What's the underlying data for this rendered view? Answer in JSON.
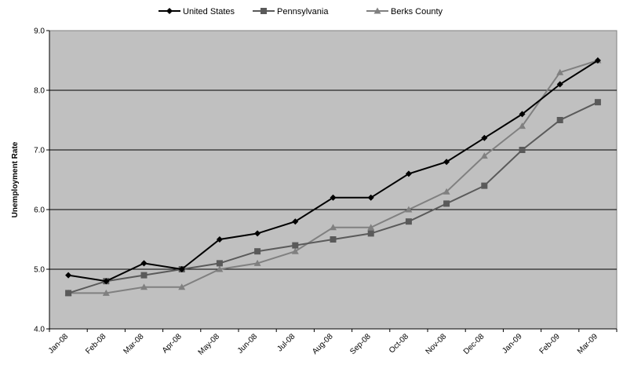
{
  "chart_data": {
    "type": "line",
    "title": "",
    "xlabel": "",
    "ylabel": "Unemployment Rate",
    "ylim": [
      4.0,
      9.0
    ],
    "yticks": [
      "4.0",
      "5.0",
      "6.0",
      "7.0",
      "8.0",
      "9.0"
    ],
    "grid": true,
    "legend_position": "top",
    "plot_background": "#c0c0c0",
    "categories": [
      "Jan-08",
      "Feb-08",
      "Mar-08",
      "Apr-08",
      "May-08",
      "Jun-08",
      "Jul-08",
      "Aug-08",
      "Sep-08",
      "Oct-08",
      "Nov-08",
      "Dec-08",
      "Jan-09",
      "Feb-09",
      "Mar-09"
    ],
    "series": [
      {
        "name": "United States",
        "color": "#000000",
        "marker": "diamond",
        "values": [
          4.9,
          4.8,
          5.1,
          5.0,
          5.5,
          5.6,
          5.8,
          6.2,
          6.2,
          6.6,
          6.8,
          7.2,
          7.6,
          8.1,
          8.5
        ]
      },
      {
        "name": "Pennsylvania",
        "color": "#5a5a5a",
        "marker": "square",
        "values": [
          4.6,
          4.8,
          4.9,
          5.0,
          5.1,
          5.3,
          5.4,
          5.5,
          5.6,
          5.8,
          6.1,
          6.4,
          7.0,
          7.5,
          7.8
        ]
      },
      {
        "name": "Berks County",
        "color": "#808080",
        "marker": "triangle",
        "values": [
          4.6,
          4.6,
          4.7,
          4.7,
          5.0,
          5.1,
          5.3,
          5.7,
          5.7,
          6.0,
          6.3,
          6.9,
          7.4,
          8.3,
          8.5
        ]
      }
    ]
  }
}
